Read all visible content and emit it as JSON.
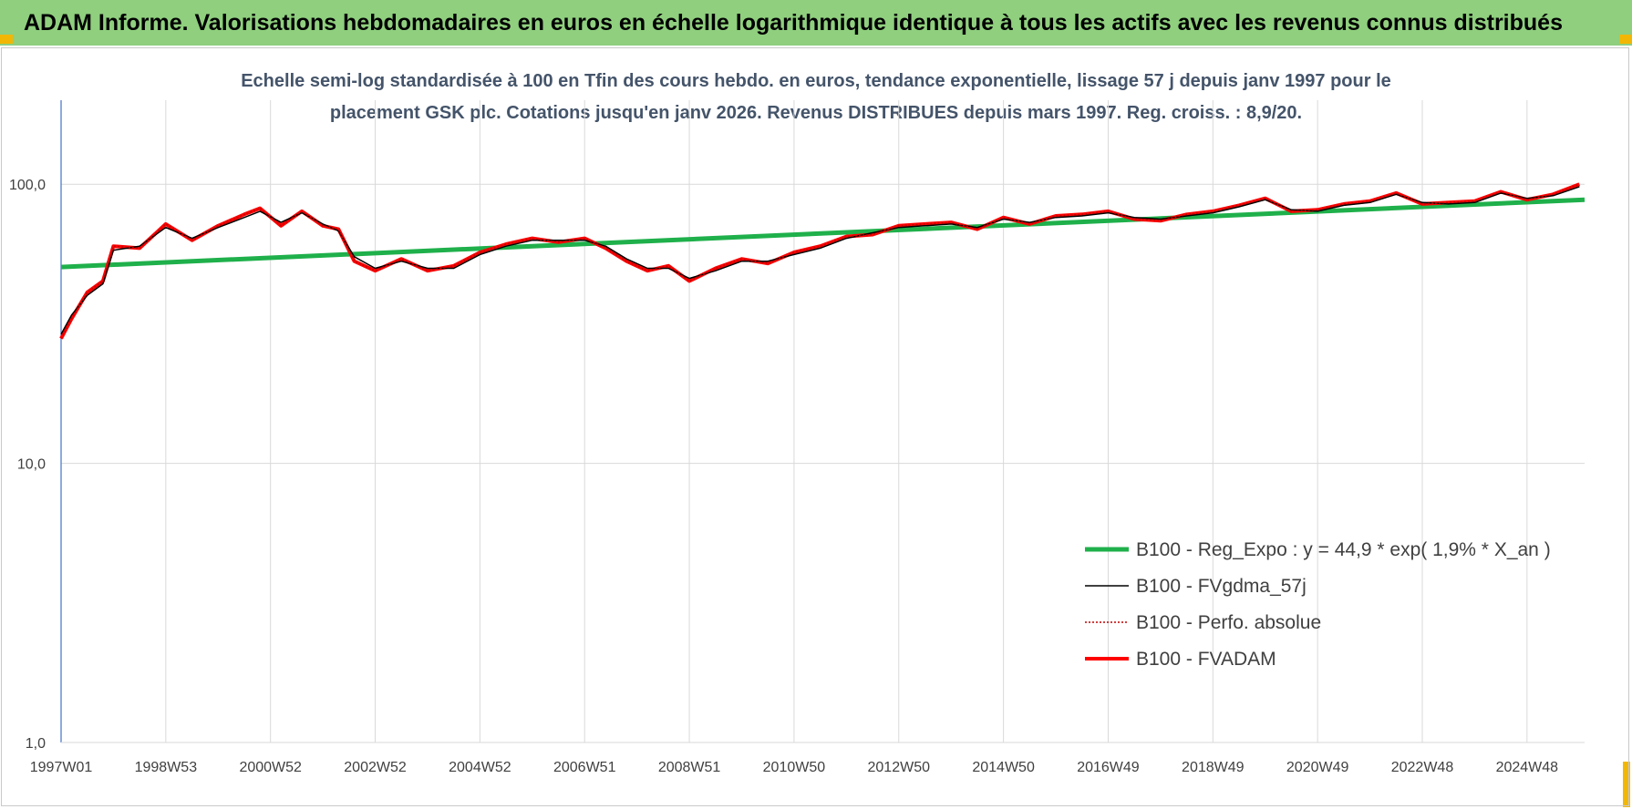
{
  "header": {
    "title": "ADAM Informe. Valorisations hebdomadaires en euros en échelle logarithmique identique à tous les actifs avec les revenus connus distribués"
  },
  "chart_data": {
    "type": "line",
    "title_line1": "Echelle semi-log standardisée à 100 en Tfin des cours hebdo. en euros, tendance exponentielle, lissage 57 j depuis janv 1997 pour le",
    "title_line2": "placement GSK plc. Cotations jusqu'en janv 2026. Revenus DISTRIBUES depuis mars 1997. Reg. croiss. : 8,9/20.",
    "y_scale": "log",
    "ylim": [
      1,
      200
    ],
    "y_ticks": [
      {
        "value": 1,
        "label": "1,0"
      },
      {
        "value": 10,
        "label": "10,0"
      },
      {
        "value": 100,
        "label": "100,0"
      }
    ],
    "xlim": [
      1997.0,
      2026.1
    ],
    "x_ticks": [
      {
        "value": 1997.0,
        "label": "1997W01"
      },
      {
        "value": 1999.0,
        "label": "1998W53"
      },
      {
        "value": 2001.0,
        "label": "2000W52"
      },
      {
        "value": 2003.0,
        "label": "2002W52"
      },
      {
        "value": 2005.0,
        "label": "2004W52"
      },
      {
        "value": 2007.0,
        "label": "2006W51"
      },
      {
        "value": 2009.0,
        "label": "2008W51"
      },
      {
        "value": 2011.0,
        "label": "2010W50"
      },
      {
        "value": 2013.0,
        "label": "2012W50"
      },
      {
        "value": 2015.0,
        "label": "2014W50"
      },
      {
        "value": 2017.0,
        "label": "2016W49"
      },
      {
        "value": 2019.0,
        "label": "2018W49"
      },
      {
        "value": 2021.0,
        "label": "2020W49"
      },
      {
        "value": 2023.0,
        "label": "2022W48"
      },
      {
        "value": 2025.0,
        "label": "2024W48"
      }
    ],
    "grid": "vertical",
    "legend_position": "bottom-right",
    "series": [
      {
        "name": "B100 - Reg_Expo : y = 44,9 * exp( 1,9% *  X_an )",
        "color": "#1fb04b",
        "style": "thick",
        "x": [
          1997.0,
          2026.1
        ],
        "values": [
          50.5,
          88.0
        ]
      },
      {
        "name": "B100 - FVgdma_57j",
        "color": "#000000",
        "style": "thin",
        "x": [
          1997.0,
          1997.2,
          1997.5,
          1997.8,
          1998.0,
          1998.5,
          1999.0,
          1999.5,
          2000.0,
          2000.5,
          2000.8,
          2001.2,
          2001.6,
          2002.0,
          2002.3,
          2002.6,
          2003.0,
          2003.5,
          2004.0,
          2004.5,
          2005.0,
          2005.5,
          2006.0,
          2006.5,
          2007.0,
          2007.4,
          2007.8,
          2008.2,
          2008.6,
          2009.0,
          2009.5,
          2010.0,
          2010.5,
          2011.0,
          2011.5,
          2012.0,
          2012.5,
          2013.0,
          2013.5,
          2014.0,
          2014.5,
          2015.0,
          2015.5,
          2016.0,
          2016.5,
          2017.0,
          2017.5,
          2018.0,
          2018.5,
          2019.0,
          2019.5,
          2020.0,
          2020.5,
          2021.0,
          2021.5,
          2022.0,
          2022.5,
          2023.0,
          2023.5,
          2024.0,
          2024.5,
          2025.0,
          2025.5,
          2026.0
        ],
        "values": [
          29,
          34,
          40,
          44,
          58,
          60,
          70,
          64,
          70,
          76,
          80,
          73,
          79,
          72,
          68,
          55,
          50,
          53,
          50,
          50,
          56,
          60,
          63,
          63,
          63,
          60,
          54,
          50,
          50,
          46,
          49,
          53,
          53,
          56,
          59,
          64,
          67,
          70,
          71,
          72,
          70,
          75,
          73,
          76,
          77,
          79,
          76,
          75,
          77,
          79,
          83,
          88,
          81,
          80,
          84,
          86,
          92,
          86,
          85,
          86,
          93,
          89,
          91,
          98
        ]
      },
      {
        "name": "B100 - Perfo. absolue",
        "color": "#c00000",
        "style": "dotted",
        "x": [
          1997.0,
          1997.2,
          1997.5,
          1997.8,
          1998.0,
          1998.5,
          1999.0,
          1999.5,
          2000.0,
          2000.5,
          2000.8,
          2001.2,
          2001.6,
          2002.0,
          2002.3,
          2002.6,
          2003.0,
          2003.5,
          2004.0,
          2004.5,
          2005.0,
          2005.5,
          2006.0,
          2006.5,
          2007.0,
          2007.4,
          2007.8,
          2008.2,
          2008.6,
          2009.0,
          2009.5,
          2010.0,
          2010.5,
          2011.0,
          2011.5,
          2012.0,
          2012.5,
          2013.0,
          2013.5,
          2014.0,
          2014.5,
          2015.0,
          2015.5,
          2016.0,
          2016.5,
          2017.0,
          2017.5,
          2018.0,
          2018.5,
          2019.0,
          2019.5,
          2020.0,
          2020.5,
          2021.0,
          2021.5,
          2022.0,
          2022.5,
          2023.0,
          2023.5,
          2024.0,
          2024.5,
          2025.0,
          2025.5,
          2026.0
        ],
        "values": [
          28,
          33,
          41,
          45,
          60,
          59,
          72,
          63,
          71,
          78,
          82,
          71,
          80,
          71,
          69,
          53,
          49,
          54,
          49,
          51,
          57,
          61,
          64,
          62,
          64,
          59,
          53,
          49,
          51,
          45,
          50,
          54,
          52,
          57,
          60,
          65,
          66,
          71,
          72,
          73,
          69,
          76,
          72,
          77,
          78,
          80,
          75,
          74,
          78,
          80,
          84,
          89,
          80,
          81,
          85,
          87,
          93,
          85,
          86,
          87,
          94,
          88,
          92,
          100
        ]
      },
      {
        "name": "B100 - FVADAM",
        "color": "#ff0000",
        "style": "thick",
        "x": [
          1997.0,
          1997.2,
          1997.5,
          1997.8,
          1998.0,
          1998.5,
          1999.0,
          1999.5,
          2000.0,
          2000.5,
          2000.8,
          2001.2,
          2001.6,
          2002.0,
          2002.3,
          2002.6,
          2003.0,
          2003.5,
          2004.0,
          2004.5,
          2005.0,
          2005.5,
          2006.0,
          2006.5,
          2007.0,
          2007.4,
          2007.8,
          2008.2,
          2008.6,
          2009.0,
          2009.5,
          2010.0,
          2010.5,
          2011.0,
          2011.5,
          2012.0,
          2012.5,
          2013.0,
          2013.5,
          2014.0,
          2014.5,
          2015.0,
          2015.5,
          2016.0,
          2016.5,
          2017.0,
          2017.5,
          2018.0,
          2018.5,
          2019.0,
          2019.5,
          2020.0,
          2020.5,
          2021.0,
          2021.5,
          2022.0,
          2022.5,
          2023.0,
          2023.5,
          2024.0,
          2024.5,
          2025.0,
          2025.5,
          2026.0
        ],
        "values": [
          28,
          33,
          41,
          45,
          60,
          59,
          72,
          63,
          71,
          78,
          82,
          71,
          80,
          71,
          69,
          53,
          49,
          54,
          49,
          51,
          57,
          61,
          64,
          62,
          64,
          59,
          53,
          49,
          51,
          45,
          50,
          54,
          52,
          57,
          60,
          65,
          66,
          71,
          72,
          73,
          69,
          76,
          72,
          77,
          78,
          80,
          75,
          74,
          78,
          80,
          84,
          89,
          80,
          81,
          85,
          87,
          93,
          85,
          86,
          87,
          94,
          88,
          92,
          100
        ]
      }
    ]
  },
  "colors": {
    "banner_bg": "#8fcf7e",
    "subtitle_text": "#44546a",
    "corner_accent": "#f2b705",
    "grid": "#d9d9d9",
    "axis": "#4472c4"
  }
}
